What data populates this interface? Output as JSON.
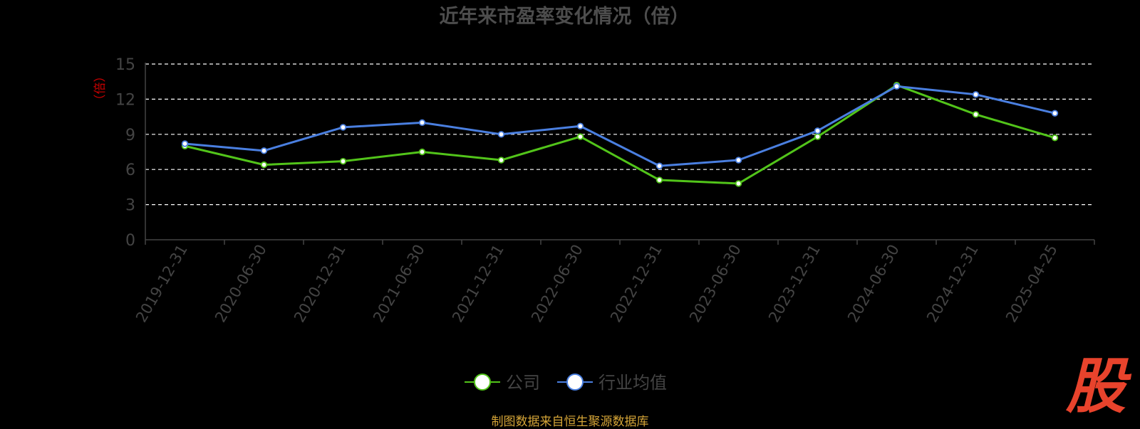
{
  "chart_data": {
    "type": "line",
    "title": "近年来市盈率变化情况（倍）",
    "ylabel": "（倍）",
    "ylim": [
      0,
      15
    ],
    "yticks": [
      0,
      3,
      6,
      9,
      12,
      15
    ],
    "grid": true,
    "legend_position": "bottom",
    "categories": [
      "2019-12-31",
      "2020-06-30",
      "2020-12-31",
      "2021-06-30",
      "2021-12-31",
      "2022-06-30",
      "2022-12-31",
      "2023-06-30",
      "2023-12-31",
      "2024-06-30",
      "2024-12-31",
      "2025-04-25"
    ],
    "series": [
      {
        "name": "公司",
        "color": "#52c41a",
        "values": [
          8.0,
          6.4,
          6.7,
          7.5,
          6.8,
          8.8,
          5.1,
          4.8,
          8.8,
          13.2,
          10.7,
          8.7
        ]
      },
      {
        "name": "行业均值",
        "color": "#4a7fe0",
        "values": [
          8.2,
          7.6,
          9.6,
          10.0,
          9.0,
          9.7,
          6.3,
          6.8,
          9.3,
          13.1,
          12.4,
          10.8
        ]
      }
    ]
  },
  "footer": {
    "source": "制图数据来自恒生聚源数据库"
  },
  "logo": {
    "char": "股",
    "color": "#e8432c"
  },
  "colors": {
    "axis_text": "#444444",
    "grid": "#ffffff",
    "title": "#4d4d4d",
    "ylabel": "#cc0000"
  }
}
